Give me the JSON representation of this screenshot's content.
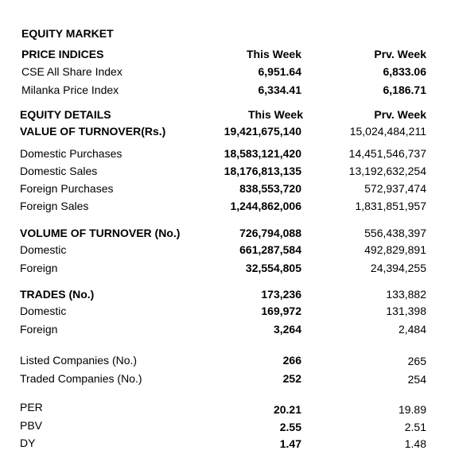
{
  "title": "EQUITY MARKET",
  "price_indices": {
    "heading": "PRICE INDICES",
    "col_this": "This Week",
    "col_prev": "Prv. Week",
    "rows": [
      {
        "label": "CSE All Share Index",
        "this": "6,951.64",
        "prev": "6,833.06"
      },
      {
        "label": "Milanka Price Index",
        "this": "6,334.41",
        "prev": "6,186.71"
      }
    ]
  },
  "equity_details": {
    "heading": "EQUITY DETAILS",
    "col_this": "This Week",
    "col_prev": "Prv. Week",
    "value_turnover": {
      "label": "VALUE OF TURNOVER(Rs.)",
      "this": "19,421,675,140",
      "prev": "15,024,484,211"
    },
    "value_rows": [
      {
        "label": "Domestic Purchases",
        "this": "18,583,121,420",
        "prev": "14,451,546,737"
      },
      {
        "label": "Domestic Sales",
        "this": "18,176,813,135",
        "prev": "13,192,632,254"
      },
      {
        "label": "Foreign Purchases",
        "this": "838,553,720",
        "prev": "572,937,474"
      },
      {
        "label": "Foreign Sales",
        "this": "1,244,862,006",
        "prev": "1,831,851,957"
      }
    ],
    "volume_turnover": {
      "label": "VOLUME OF TURNOVER (No.)",
      "this": "726,794,088",
      "prev": "556,438,397"
    },
    "volume_rows": [
      {
        "label": "Domestic",
        "this": "661,287,584",
        "prev": "492,829,891"
      },
      {
        "label": "Foreign",
        "this": "32,554,805",
        "prev": "24,394,255"
      }
    ],
    "trades": {
      "label": "TRADES (No.)",
      "this": "173,236",
      "prev": "133,882"
    },
    "trade_rows": [
      {
        "label": "Domestic",
        "this": "169,972",
        "prev": "131,398"
      },
      {
        "label": "Foreign",
        "this": "3,264",
        "prev": "2,484"
      }
    ],
    "company_rows": [
      {
        "label": "Listed Companies (No.)",
        "this": "266",
        "prev": "265"
      },
      {
        "label": "Traded Companies (No.)",
        "this": "252",
        "prev": "254"
      }
    ],
    "ratio_rows": [
      {
        "label": "PER",
        "this": "20.21",
        "prev": "19.89"
      },
      {
        "label": "PBV",
        "this": "2.55",
        "prev": "2.51"
      },
      {
        "label": "DY",
        "this": "1.47",
        "prev": "1.48"
      }
    ]
  }
}
